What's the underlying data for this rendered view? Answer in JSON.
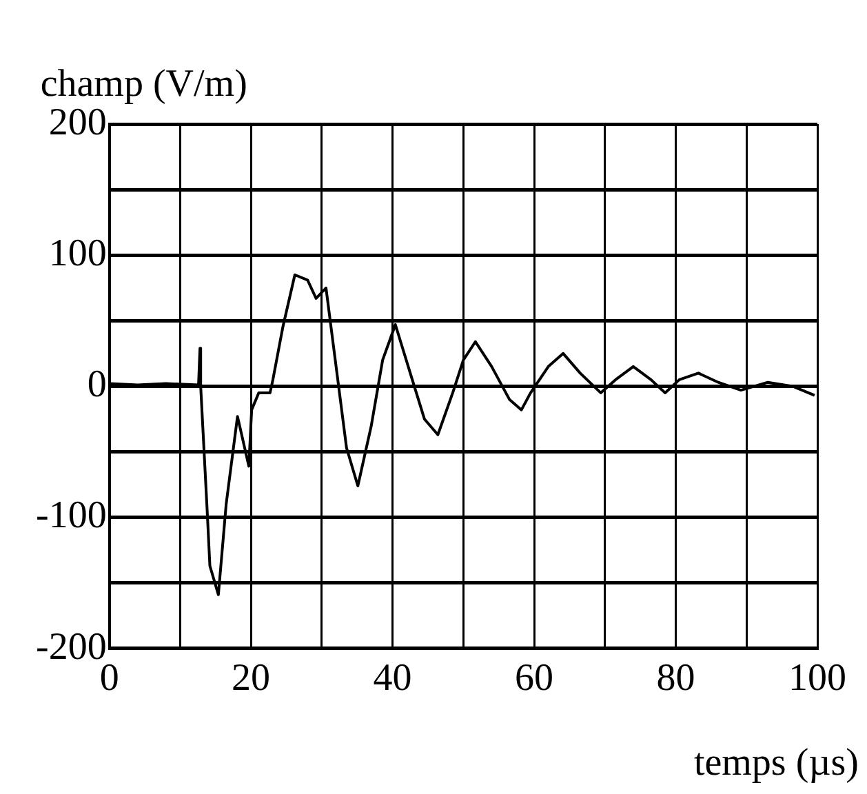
{
  "chart_data": {
    "type": "line",
    "xlabel": "temps (µs)",
    "ylabel": "champ (V/m)",
    "xlim": [
      0,
      100
    ],
    "ylim": [
      -200,
      200
    ],
    "xticks": [
      0,
      {
        "value": 10,
        "label": null
      },
      20,
      {
        "value": 30,
        "label": null
      },
      40,
      {
        "value": 50,
        "label": null
      },
      60,
      {
        "value": 70,
        "label": null
      },
      80,
      {
        "value": 90,
        "label": null
      },
      100
    ],
    "yticks": [
      -200,
      {
        "value": -150,
        "label": null
      },
      -100,
      {
        "value": -50,
        "label": null
      },
      0,
      {
        "value": 50,
        "label": null
      },
      100,
      {
        "value": 150,
        "label": null
      },
      200
    ],
    "grid": true,
    "legend": false,
    "marker": "none",
    "line_style": "solid",
    "series": [
      {
        "color": "#000000",
        "x": [
          0,
          4,
          8,
          12.6,
          12.8,
          12.9,
          13.8,
          14.2,
          15.4,
          16.5,
          18.1,
          19.7,
          20.1,
          21.1,
          22.7,
          23.1,
          24.5,
          26.2,
          28,
          29.2,
          30.6,
          33.5,
          35.1,
          37,
          38.6,
          40.4,
          42.5,
          44.5,
          46.4,
          48.5,
          50,
          51.7,
          54,
          56.5,
          58.2,
          59.5,
          62,
          64.1,
          66.5,
          69.4,
          71.5,
          74,
          76.5,
          78.5,
          80.5,
          83.2,
          86,
          89.2,
          93,
          96.5,
          99.6
        ],
        "values": [
          2,
          1,
          2,
          1,
          29,
          0,
          -93,
          -137,
          -159,
          -90,
          -23,
          -61,
          -18,
          -5,
          -5,
          5,
          45,
          85,
          81,
          67,
          75,
          -47,
          -76,
          -30,
          20,
          47,
          10,
          -25,
          -37,
          -5,
          20,
          34,
          15,
          -10,
          -18,
          -5,
          15,
          25,
          10,
          -5,
          5,
          15,
          5,
          -5,
          5,
          10,
          3,
          -3,
          3,
          0,
          -7
        ]
      }
    ]
  }
}
